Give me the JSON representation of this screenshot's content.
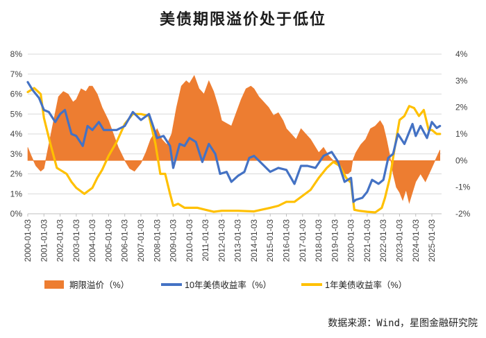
{
  "chart_data": {
    "type": "line",
    "title": "美债期限溢价处于低位",
    "source": "数据来源：Wind，星图金融研究院",
    "left_axis": {
      "ticks": [
        "0%",
        "1%",
        "2%",
        "3%",
        "4%",
        "5%",
        "6%",
        "7%",
        "8%"
      ],
      "min": 0,
      "max": 8,
      "unit": "%"
    },
    "right_axis": {
      "ticks": [
        "-2%",
        "-1%",
        "0%",
        "1%",
        "2%",
        "3%",
        "4%"
      ],
      "min": -2,
      "max": 4,
      "unit": "%"
    },
    "x_ticks": [
      "2000-01-03",
      "2001-01-03",
      "2002-01-03",
      "2003-01-03",
      "2004-01-03",
      "2005-01-03",
      "2006-01-03",
      "2007-01-03",
      "2008-01-03",
      "2009-01-03",
      "2010-01-03",
      "2011-01-03",
      "2012-01-03",
      "2013-01-03",
      "2014-01-03",
      "2015-01-03",
      "2016-01-03",
      "2017-01-03",
      "2018-01-03",
      "2019-01-03",
      "2020-01-03",
      "2021-01-03",
      "2022-01-03",
      "2023-01-03",
      "2024-01-03",
      "2025-01-03"
    ],
    "x_range": [
      2000.0,
      2025.6
    ],
    "series": [
      {
        "name": "期限溢价（%）",
        "type": "area",
        "axis": "right",
        "color": "#ED7D31",
        "x": [
          2000.0,
          2000.2,
          2000.5,
          2000.8,
          2001.0,
          2001.3,
          2001.6,
          2001.9,
          2002.2,
          2002.5,
          2002.8,
          2003.0,
          2003.3,
          2003.6,
          2003.8,
          2004.0,
          2004.3,
          2004.6,
          2005.0,
          2005.3,
          2005.6,
          2006.0,
          2006.3,
          2006.6,
          2007.0,
          2007.3,
          2007.6,
          2008.0,
          2008.3,
          2008.6,
          2008.9,
          2009.2,
          2009.5,
          2009.8,
          2010.0,
          2010.3,
          2010.6,
          2010.9,
          2011.2,
          2011.5,
          2011.8,
          2012.0,
          2012.3,
          2012.6,
          2012.9,
          2013.2,
          2013.5,
          2013.8,
          2014.0,
          2014.3,
          2014.6,
          2014.9,
          2015.2,
          2015.5,
          2015.8,
          2016.0,
          2016.3,
          2016.6,
          2016.9,
          2017.2,
          2017.5,
          2017.8,
          2018.0,
          2018.3,
          2018.6,
          2018.9,
          2019.2,
          2019.5,
          2019.8,
          2020.0,
          2020.1,
          2020.3,
          2020.6,
          2020.9,
          2021.2,
          2021.5,
          2021.8,
          2022.0,
          2022.2,
          2022.4,
          2022.6,
          2022.8,
          2023.0,
          2023.2,
          2023.4,
          2023.6,
          2023.8,
          2024.0,
          2024.3,
          2024.6,
          2024.9,
          2025.2,
          2025.5
        ],
        "values": [
          0.5,
          0.2,
          -0.2,
          -0.4,
          -0.3,
          0.6,
          1.5,
          2.4,
          2.6,
          2.5,
          2.2,
          2.3,
          2.7,
          2.6,
          2.8,
          2.8,
          2.5,
          2.0,
          1.5,
          1.0,
          0.5,
          0.0,
          -0.3,
          -0.4,
          -0.1,
          0.3,
          0.8,
          1.2,
          0.8,
          0.6,
          1.0,
          2.0,
          2.8,
          3.0,
          2.9,
          3.2,
          2.7,
          2.5,
          3.0,
          2.6,
          2.0,
          1.5,
          1.4,
          1.3,
          1.8,
          2.3,
          2.7,
          2.8,
          2.7,
          2.4,
          2.2,
          2.0,
          1.7,
          1.8,
          1.5,
          1.2,
          1.0,
          0.8,
          1.2,
          1.0,
          0.8,
          0.5,
          0.3,
          0.5,
          0.2,
          0.0,
          -0.2,
          -0.5,
          -0.5,
          -0.4,
          0.0,
          0.3,
          0.6,
          0.8,
          1.2,
          1.3,
          1.5,
          1.3,
          0.8,
          0.2,
          -0.5,
          -1.0,
          -1.2,
          -1.5,
          -1.1,
          -1.6,
          -1.2,
          -0.8,
          -0.5,
          -0.8,
          -0.4,
          0.0,
          0.4
        ]
      },
      {
        "name": "10年美债收益率（%）",
        "type": "line",
        "axis": "left",
        "color": "#4472C4",
        "x": [
          2000.0,
          2000.3,
          2000.7,
          2001.0,
          2001.3,
          2001.7,
          2002.0,
          2002.3,
          2002.7,
          2003.0,
          2003.4,
          2003.7,
          2004.0,
          2004.4,
          2004.7,
          2005.0,
          2005.5,
          2006.0,
          2006.5,
          2007.0,
          2007.5,
          2008.0,
          2008.4,
          2008.8,
          2009.0,
          2009.4,
          2009.7,
          2010.0,
          2010.4,
          2010.8,
          2011.2,
          2011.6,
          2011.9,
          2012.3,
          2012.6,
          2013.0,
          2013.4,
          2013.7,
          2014.0,
          2014.5,
          2015.0,
          2015.5,
          2016.0,
          2016.5,
          2016.9,
          2017.3,
          2017.8,
          2018.3,
          2018.8,
          2019.2,
          2019.6,
          2020.0,
          2020.15,
          2020.3,
          2020.7,
          2021.0,
          2021.3,
          2021.7,
          2022.0,
          2022.3,
          2022.6,
          2022.9,
          2023.3,
          2023.8,
          2024.0,
          2024.3,
          2024.7,
          2025.0,
          2025.3,
          2025.5
        ],
        "values": [
          6.6,
          6.2,
          5.8,
          5.2,
          5.1,
          4.6,
          5.0,
          5.2,
          4.0,
          3.9,
          3.4,
          4.4,
          4.2,
          4.6,
          4.2,
          4.2,
          4.2,
          4.4,
          5.1,
          4.7,
          5.0,
          3.8,
          3.9,
          3.4,
          2.3,
          3.5,
          3.4,
          3.8,
          3.6,
          2.6,
          3.5,
          3.0,
          2.0,
          2.1,
          1.6,
          1.9,
          2.1,
          2.8,
          2.9,
          2.5,
          2.1,
          2.3,
          2.2,
          1.5,
          2.4,
          2.4,
          2.3,
          2.9,
          3.1,
          2.6,
          1.6,
          1.8,
          0.6,
          0.7,
          0.8,
          1.1,
          1.7,
          1.5,
          1.7,
          2.8,
          3.0,
          4.0,
          3.5,
          4.5,
          3.9,
          4.4,
          3.8,
          4.6,
          4.3,
          4.4
        ]
      },
      {
        "name": "1年美债收益率（%）",
        "type": "line",
        "axis": "left",
        "color": "#FFC000",
        "x": [
          2000.0,
          2000.4,
          2000.8,
          2001.0,
          2001.4,
          2001.8,
          2002.0,
          2002.4,
          2002.7,
          2003.0,
          2003.5,
          2004.0,
          2004.3,
          2004.6,
          2005.0,
          2005.5,
          2006.0,
          2006.5,
          2007.0,
          2007.5,
          2007.9,
          2008.2,
          2008.5,
          2008.8,
          2009.0,
          2009.3,
          2009.7,
          2010.0,
          2010.5,
          2011.0,
          2011.5,
          2012.0,
          2013.0,
          2014.0,
          2015.0,
          2015.5,
          2016.0,
          2016.5,
          2017.0,
          2017.5,
          2018.0,
          2018.5,
          2018.9,
          2019.3,
          2019.7,
          2020.0,
          2020.2,
          2020.5,
          2021.0,
          2021.5,
          2021.9,
          2022.1,
          2022.4,
          2022.7,
          2023.0,
          2023.3,
          2023.6,
          2023.9,
          2024.2,
          2024.5,
          2024.8,
          2025.0,
          2025.3,
          2025.5
        ],
        "values": [
          6.1,
          6.3,
          6.0,
          4.8,
          3.5,
          2.3,
          2.2,
          2.0,
          1.6,
          1.3,
          1.0,
          1.3,
          1.8,
          2.2,
          2.9,
          3.6,
          4.5,
          5.0,
          5.0,
          4.9,
          3.5,
          2.0,
          2.0,
          1.0,
          0.4,
          0.5,
          0.3,
          0.3,
          0.3,
          0.2,
          0.1,
          0.15,
          0.15,
          0.12,
          0.3,
          0.4,
          0.6,
          0.6,
          0.9,
          1.2,
          1.8,
          2.3,
          2.6,
          2.4,
          1.8,
          1.55,
          0.2,
          0.15,
          0.1,
          0.07,
          0.3,
          0.8,
          1.8,
          3.3,
          4.7,
          4.9,
          5.4,
          5.3,
          4.9,
          5.2,
          4.2,
          4.2,
          4.0,
          4.0
        ]
      }
    ]
  },
  "legend": {
    "term_premium": "期限溢价（%）",
    "ten_year": "10年美债收益率（%）",
    "one_year": "1年美债收益率（%）"
  }
}
